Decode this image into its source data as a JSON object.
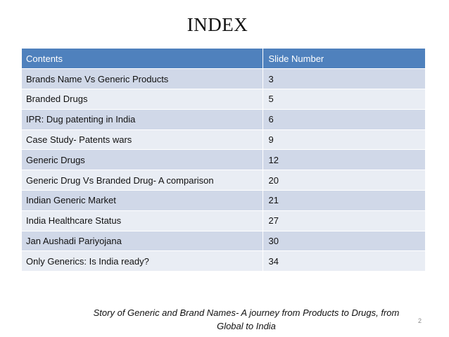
{
  "slide": {
    "title": "INDEX",
    "table": {
      "headers": [
        "Contents",
        "Slide Number"
      ],
      "rows": [
        {
          "contents": "Brands Name Vs Generic Products",
          "slide": "3"
        },
        {
          "contents": "Branded Drugs",
          "slide": "5"
        },
        {
          "contents": "IPR: Dug patenting in India",
          "slide": "6"
        },
        {
          "contents": "Case Study- Patents wars",
          "slide": "9"
        },
        {
          "contents": "Generic Drugs",
          "slide": "12"
        },
        {
          "contents": "Generic Drug Vs Branded Drug- A comparison",
          "slide": "20"
        },
        {
          "contents": "Indian Generic Market",
          "slide": "21"
        },
        {
          "contents": "India Healthcare Status",
          "slide": "27"
        },
        {
          "contents": "Jan Aushadi Pariyojana",
          "slide": "30"
        },
        {
          "contents": "Only Generics: Is India ready?",
          "slide": "34"
        }
      ]
    },
    "footer": {
      "line1": "Story of Generic and Brand Names- A journey from Products to Drugs, from",
      "line2": "Global to India"
    },
    "page_number": "2"
  },
  "colors": {
    "header_bg": "#4f81bd",
    "row_odd_bg": "#d0d8e8",
    "row_even_bg": "#e9edf4"
  }
}
